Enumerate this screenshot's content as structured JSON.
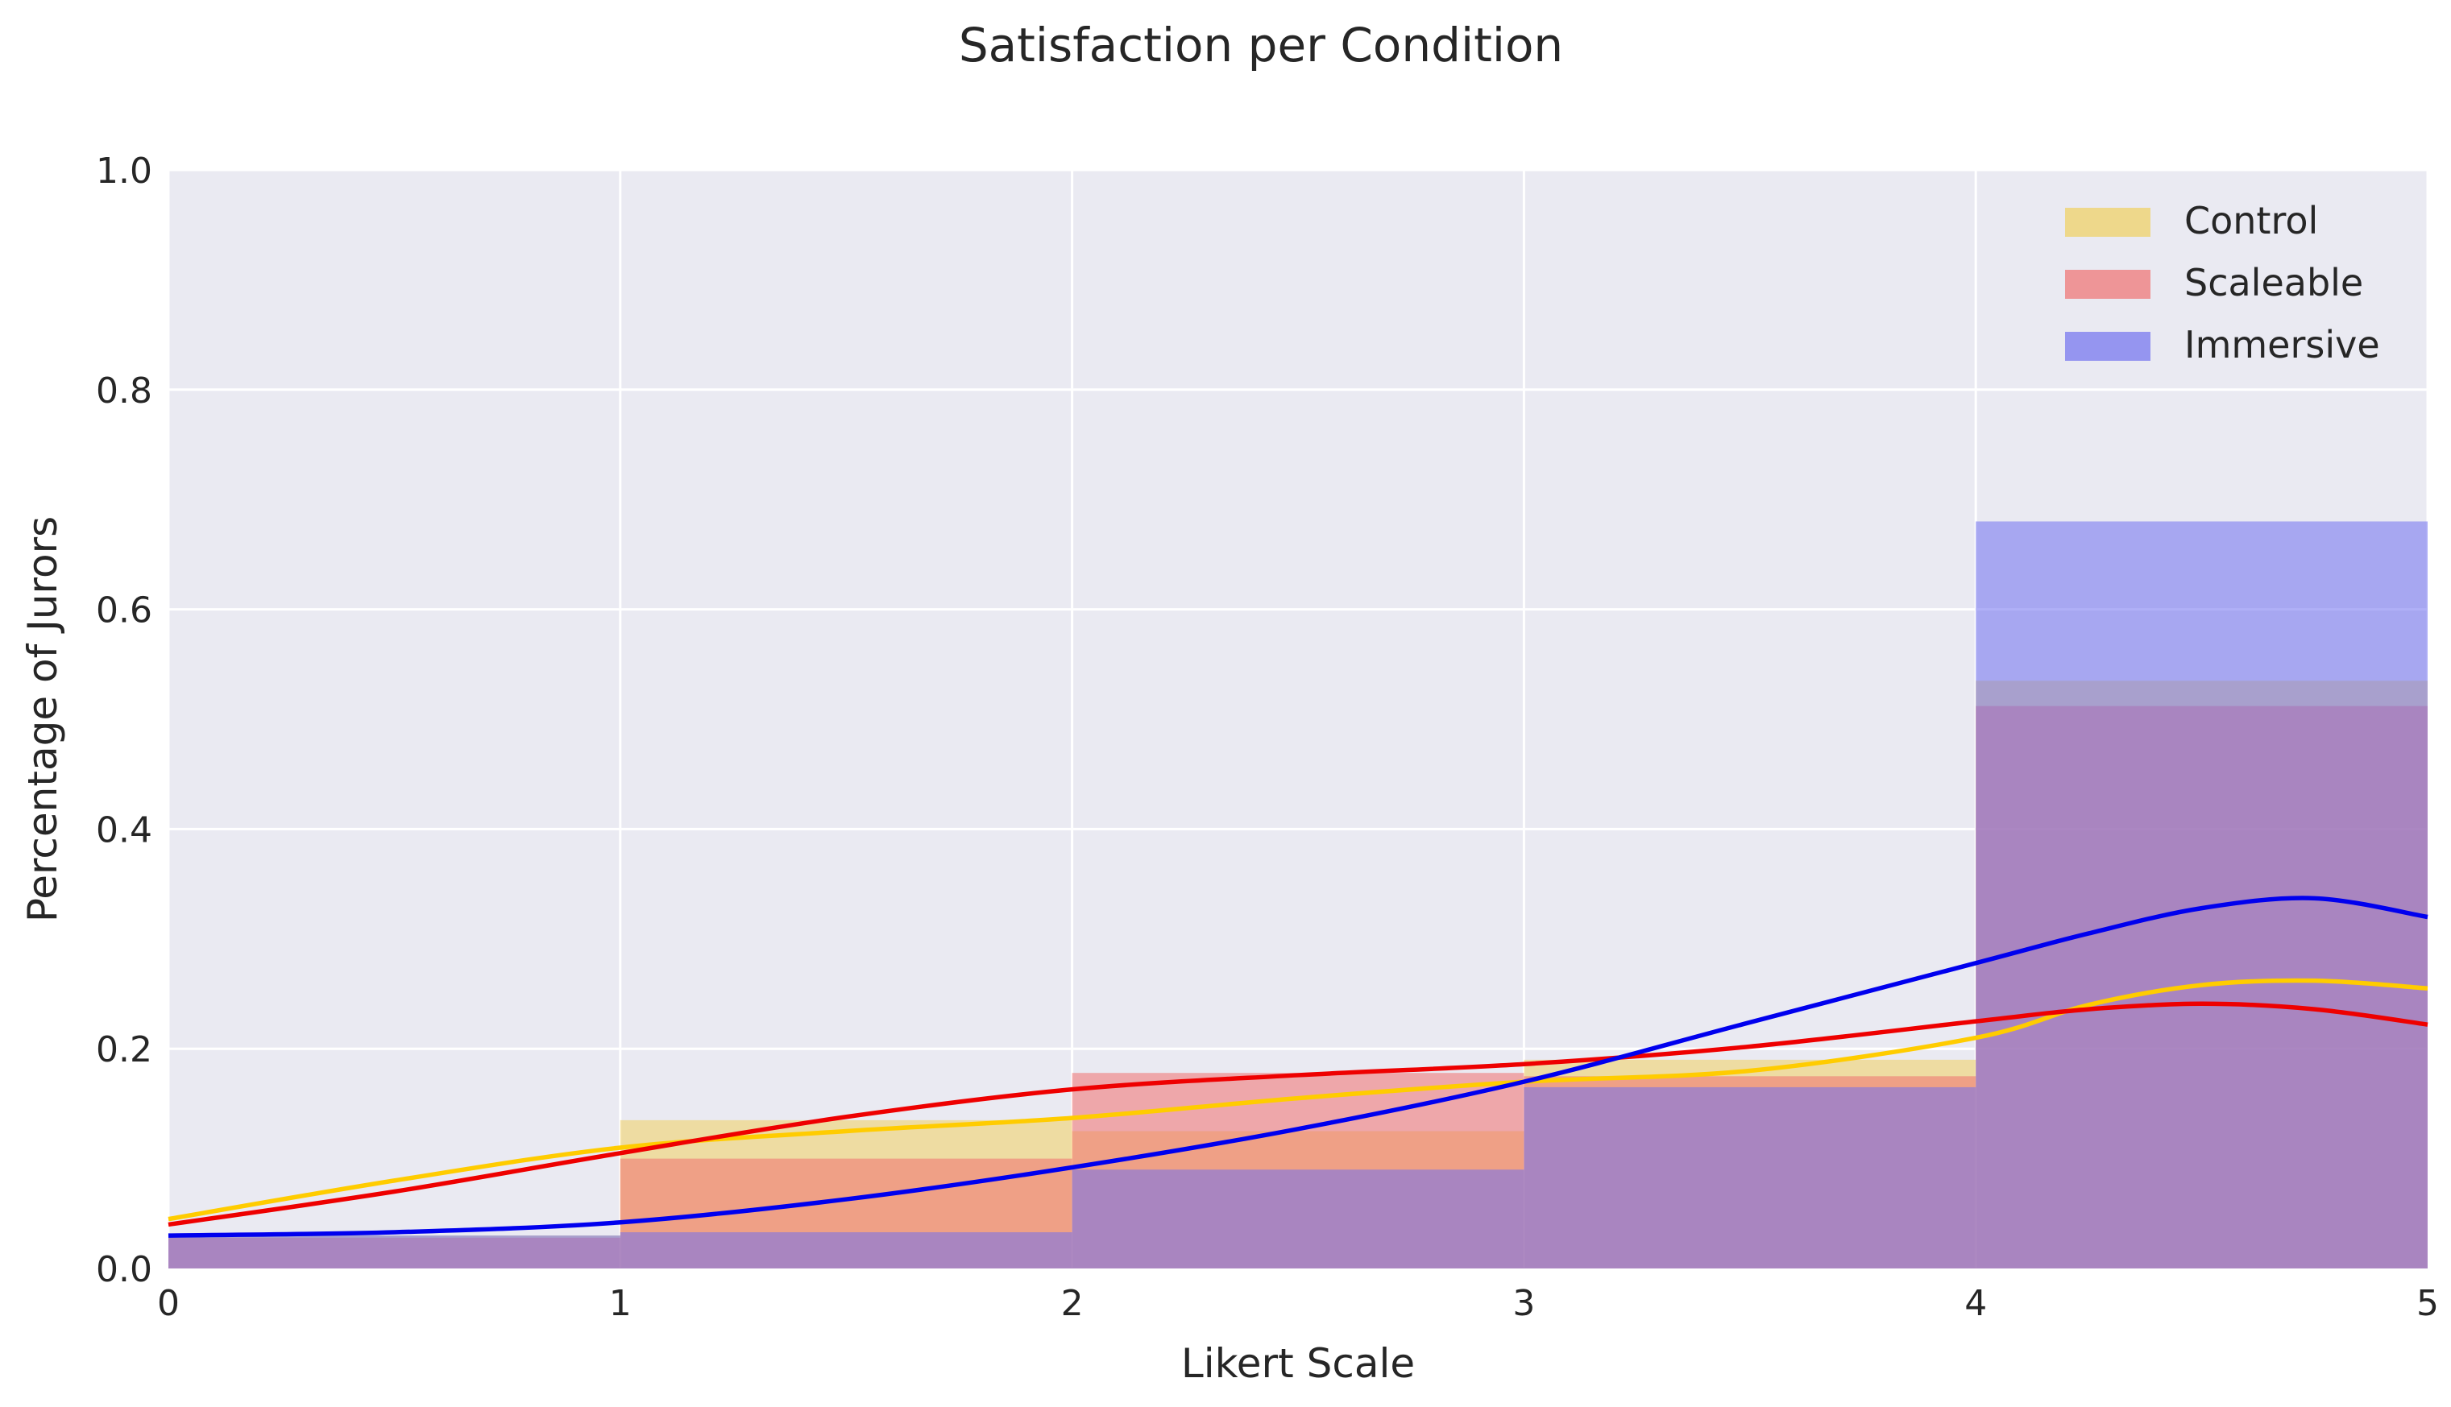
{
  "chart_data": {
    "type": "bar",
    "title": "Satisfaction per Condition",
    "xlabel": "Likert Scale",
    "ylabel": "Percentage of Jurors",
    "xlim": [
      0,
      5
    ],
    "ylim": [
      0,
      1.0
    ],
    "x_ticks": [
      "0",
      "1",
      "2",
      "3",
      "4",
      "5"
    ],
    "y_ticks": [
      "0.0",
      "0.2",
      "0.4",
      "0.6",
      "0.8",
      "1.0"
    ],
    "grid": true,
    "legend_position": "top-right",
    "bins": [
      [
        0,
        1
      ],
      [
        1,
        2
      ],
      [
        2,
        3
      ],
      [
        3,
        4
      ],
      [
        4,
        5
      ]
    ],
    "series": [
      {
        "name": "Control",
        "color": "#f0d060",
        "line_color": "#ffcc00",
        "values": [
          0.03,
          0.135,
          0.125,
          0.19,
          0.535
        ],
        "kde_x": [
          0,
          0.5,
          1,
          1.5,
          2,
          2.5,
          3,
          3.5,
          4,
          4.25,
          4.5,
          4.75,
          5
        ],
        "kde_y": [
          0.045,
          0.08,
          0.11,
          0.125,
          0.137,
          0.155,
          0.17,
          0.18,
          0.21,
          0.24,
          0.258,
          0.262,
          0.255
        ]
      },
      {
        "name": "Scaleable",
        "color": "#f07070",
        "line_color": "#ee0000",
        "values": [
          0.028,
          0.1,
          0.178,
          0.175,
          0.512
        ],
        "kde_x": [
          0,
          0.5,
          1,
          1.5,
          2,
          2.5,
          3,
          3.5,
          4,
          4.25,
          4.5,
          4.75,
          5
        ],
        "kde_y": [
          0.04,
          0.07,
          0.105,
          0.138,
          0.163,
          0.176,
          0.186,
          0.202,
          0.225,
          0.236,
          0.241,
          0.236,
          0.222
        ]
      },
      {
        "name": "Immersive",
        "color": "#7070f0",
        "line_color": "#0000ee",
        "values": [
          0.03,
          0.033,
          0.09,
          0.165,
          0.68
        ],
        "kde_x": [
          0,
          0.5,
          1,
          1.5,
          2,
          2.5,
          3,
          3.5,
          4,
          4.25,
          4.5,
          4.75,
          5
        ],
        "kde_y": [
          0.03,
          0.033,
          0.042,
          0.063,
          0.092,
          0.127,
          0.17,
          0.224,
          0.278,
          0.305,
          0.328,
          0.337,
          0.32
        ]
      }
    ]
  }
}
